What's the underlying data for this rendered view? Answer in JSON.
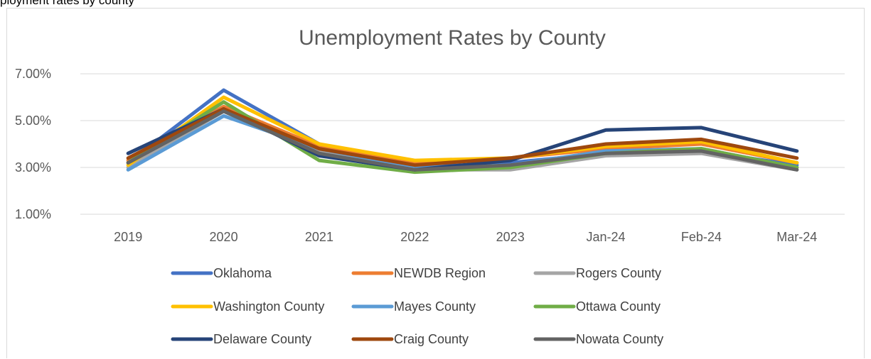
{
  "caption": "ployment rates by county",
  "chart_data": {
    "type": "line",
    "title": "Unemployment Rates by County",
    "xlabel": "",
    "ylabel": "",
    "categories": [
      "2019",
      "2020",
      "2021",
      "2022",
      "2023",
      "Jan-24",
      "Feb-24",
      "Mar-24"
    ],
    "ylim": [
      0.01,
      0.07
    ],
    "yticks": [
      "1.00%",
      "3.00%",
      "5.00%",
      "7.00%"
    ],
    "grid": true,
    "legend_position": "bottom",
    "series": [
      {
        "name": "Oklahoma",
        "color": "#4472C4",
        "values": [
          0.032,
          0.063,
          0.04,
          0.03,
          0.032,
          0.036,
          0.037,
          0.031
        ]
      },
      {
        "name": "NEWDB Region",
        "color": "#ED7D31",
        "values": [
          0.033,
          0.056,
          0.039,
          0.032,
          0.034,
          0.038,
          0.04,
          0.032
        ]
      },
      {
        "name": "Rogers County",
        "color": "#A5A5A5",
        "values": [
          0.03,
          0.054,
          0.037,
          0.029,
          0.029,
          0.035,
          0.036,
          0.029
        ]
      },
      {
        "name": "Washington County",
        "color": "#FFC000",
        "values": [
          0.031,
          0.06,
          0.04,
          0.033,
          0.034,
          0.039,
          0.041,
          0.032
        ]
      },
      {
        "name": "Mayes County",
        "color": "#5B9BD5",
        "values": [
          0.029,
          0.052,
          0.038,
          0.03,
          0.031,
          0.037,
          0.038,
          0.03
        ]
      },
      {
        "name": "Ottawa County",
        "color": "#70AD47",
        "values": [
          0.032,
          0.058,
          0.033,
          0.028,
          0.03,
          0.036,
          0.038,
          0.03
        ]
      },
      {
        "name": "Delaware County",
        "color": "#264478",
        "values": [
          0.036,
          0.055,
          0.035,
          0.029,
          0.033,
          0.046,
          0.047,
          0.037
        ]
      },
      {
        "name": "Craig County",
        "color": "#9E480E",
        "values": [
          0.034,
          0.055,
          0.038,
          0.031,
          0.034,
          0.04,
          0.042,
          0.034
        ]
      },
      {
        "name": "Nowata County",
        "color": "#636363",
        "values": [
          0.032,
          0.054,
          0.036,
          0.029,
          0.031,
          0.036,
          0.037,
          0.029
        ]
      }
    ]
  }
}
